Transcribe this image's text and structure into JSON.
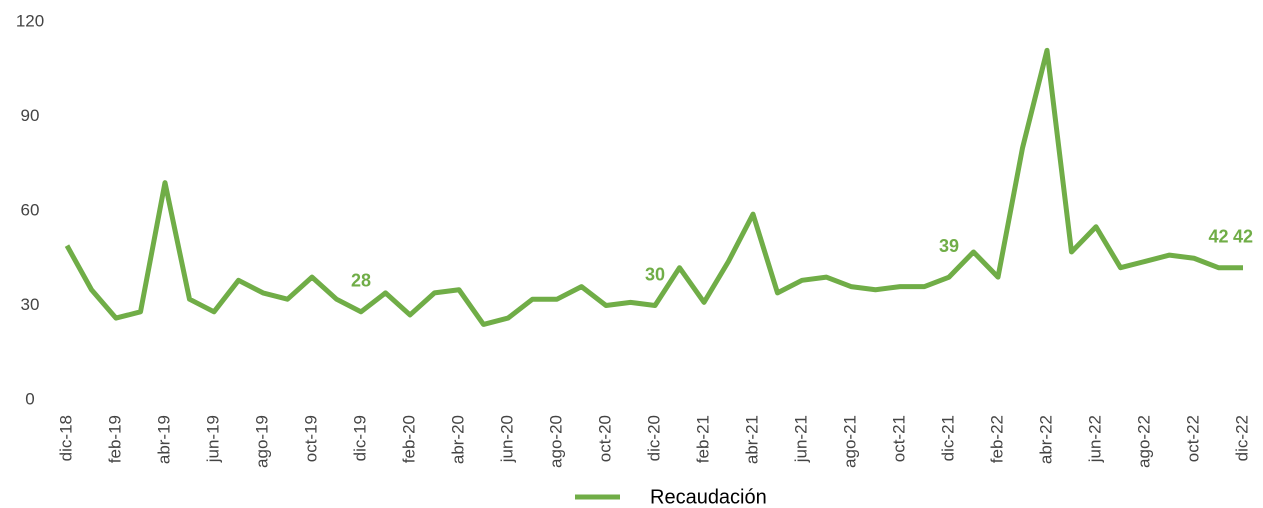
{
  "chart_data": {
    "type": "line",
    "categories": [
      "dic-18",
      null,
      "feb-19",
      null,
      "abr-19",
      null,
      "jun-19",
      null,
      "ago-19",
      null,
      "oct-19",
      null,
      "dic-19",
      null,
      "feb-20",
      null,
      "abr-20",
      null,
      "jun-20",
      null,
      "ago-20",
      null,
      "oct-20",
      null,
      "dic-20",
      null,
      "feb-21",
      null,
      "abr-21",
      null,
      "jun-21",
      null,
      "ago-21",
      null,
      "oct-21",
      null,
      "dic-21",
      null,
      "feb-22",
      null,
      "abr-22",
      null,
      "jun-22",
      null,
      "ago-22",
      null,
      "oct-22",
      null,
      "dic-22"
    ],
    "series": [
      {
        "name": "Recaudación",
        "color": "#70ad47",
        "values": [
          49,
          35,
          26,
          28,
          69,
          32,
          28,
          38,
          34,
          32,
          39,
          32,
          28,
          34,
          27,
          34,
          35,
          24,
          26,
          32,
          32,
          36,
          30,
          31,
          30,
          42,
          31,
          44,
          59,
          34,
          38,
          39,
          36,
          35,
          36,
          36,
          39,
          47,
          39,
          80,
          111,
          47,
          55,
          42,
          44,
          46,
          45,
          42,
          42
        ],
        "value_labels": [
          null,
          null,
          null,
          null,
          null,
          null,
          null,
          null,
          null,
          null,
          null,
          null,
          "28",
          null,
          null,
          null,
          null,
          null,
          null,
          null,
          null,
          null,
          null,
          null,
          "30",
          null,
          null,
          null,
          null,
          null,
          null,
          null,
          null,
          null,
          null,
          null,
          "39",
          null,
          null,
          null,
          null,
          null,
          null,
          null,
          null,
          null,
          null,
          "42",
          "42"
        ]
      }
    ],
    "ylim": [
      0,
      120
    ],
    "yticks": [
      0,
      30,
      60,
      90,
      120
    ],
    "grid": false,
    "legend": "bottom"
  }
}
